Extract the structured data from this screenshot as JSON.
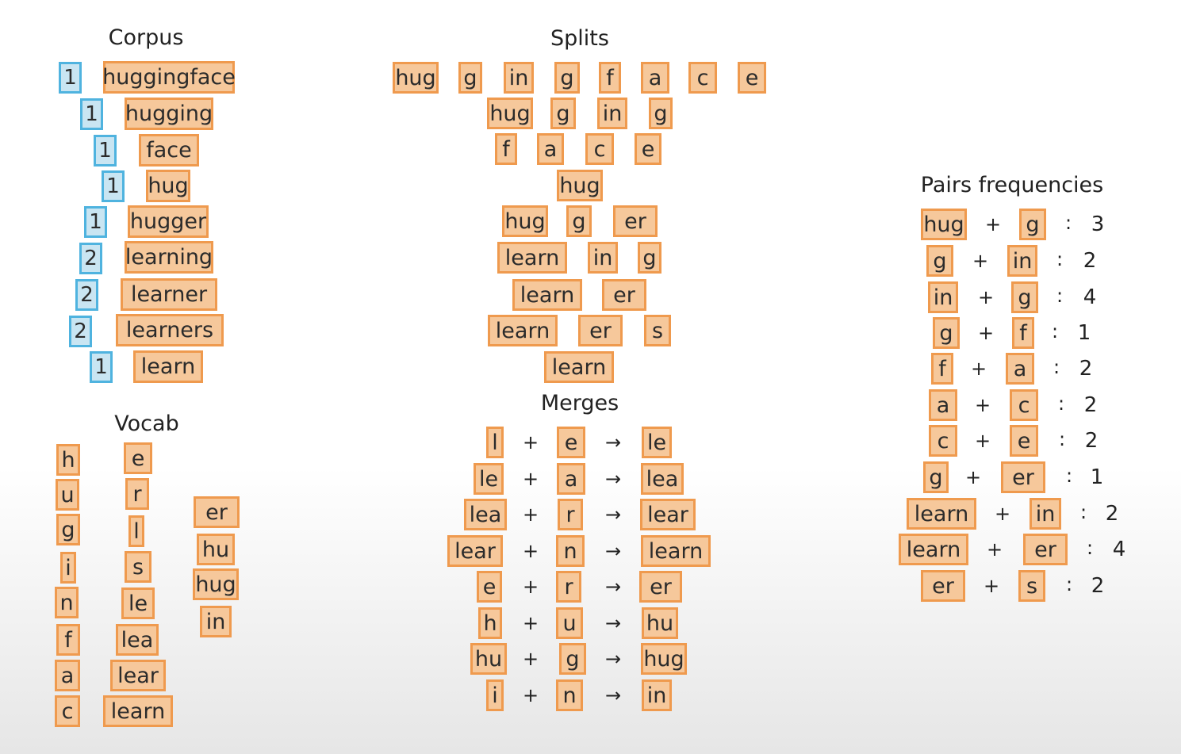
{
  "titles": {
    "corpus": "Corpus",
    "splits": "Splits",
    "vocab": "Vocab",
    "merges": "Merges",
    "pairs": "Pairs frequencies"
  },
  "symbols": {
    "plus": "+",
    "arrow": "→",
    "colon": ":"
  },
  "corpus": [
    {
      "count": "1",
      "word": "huggingface"
    },
    {
      "count": "1",
      "word": "hugging"
    },
    {
      "count": "1",
      "word": "face"
    },
    {
      "count": "1",
      "word": "hug"
    },
    {
      "count": "1",
      "word": "hugger"
    },
    {
      "count": "2",
      "word": "learning"
    },
    {
      "count": "2",
      "word": "learner"
    },
    {
      "count": "2",
      "word": "learners"
    },
    {
      "count": "1",
      "word": "learn"
    }
  ],
  "splits": [
    [
      "hug",
      "g",
      "in",
      "g",
      "f",
      "a",
      "c",
      "e"
    ],
    [
      "hug",
      "g",
      "in",
      "g"
    ],
    [
      "f",
      "a",
      "c",
      "e"
    ],
    [
      "hug"
    ],
    [
      "hug",
      "g",
      "er"
    ],
    [
      "learn",
      "in",
      "g"
    ],
    [
      "learn",
      "er"
    ],
    [
      "learn",
      "er",
      "s"
    ],
    [
      "learn"
    ]
  ],
  "vocab": {
    "col1": [
      "h",
      "u",
      "g",
      "i",
      "n",
      "f",
      "a",
      "c"
    ],
    "col2": [
      "e",
      "r",
      "l",
      "s",
      "le",
      "lea",
      "lear",
      "learn"
    ],
    "col3": [
      "er",
      "hu",
      "hug",
      "in"
    ]
  },
  "merges": [
    {
      "a": "l",
      "b": "e",
      "r": "le"
    },
    {
      "a": "le",
      "b": "a",
      "r": "lea"
    },
    {
      "a": "lea",
      "b": "r",
      "r": "lear"
    },
    {
      "a": "lear",
      "b": "n",
      "r": "learn"
    },
    {
      "a": "e",
      "b": "r",
      "r": "er"
    },
    {
      "a": "h",
      "b": "u",
      "r": "hu"
    },
    {
      "a": "hu",
      "b": "g",
      "r": "hug"
    },
    {
      "a": "i",
      "b": "n",
      "r": "in"
    }
  ],
  "pairs": [
    {
      "a": "hug",
      "b": "g",
      "n": "3"
    },
    {
      "a": "g",
      "b": "in",
      "n": "2"
    },
    {
      "a": "in",
      "b": "g",
      "n": "4"
    },
    {
      "a": "g",
      "b": "f",
      "n": "1"
    },
    {
      "a": "f",
      "b": "a",
      "n": "2"
    },
    {
      "a": "a",
      "b": "c",
      "n": "2"
    },
    {
      "a": "c",
      "b": "e",
      "n": "2"
    },
    {
      "a": "g",
      "b": "er",
      "n": "1"
    },
    {
      "a": "learn",
      "b": "in",
      "n": "2"
    },
    {
      "a": "learn",
      "b": "er",
      "n": "4"
    },
    {
      "a": "er",
      "b": "s",
      "n": "2"
    }
  ]
}
